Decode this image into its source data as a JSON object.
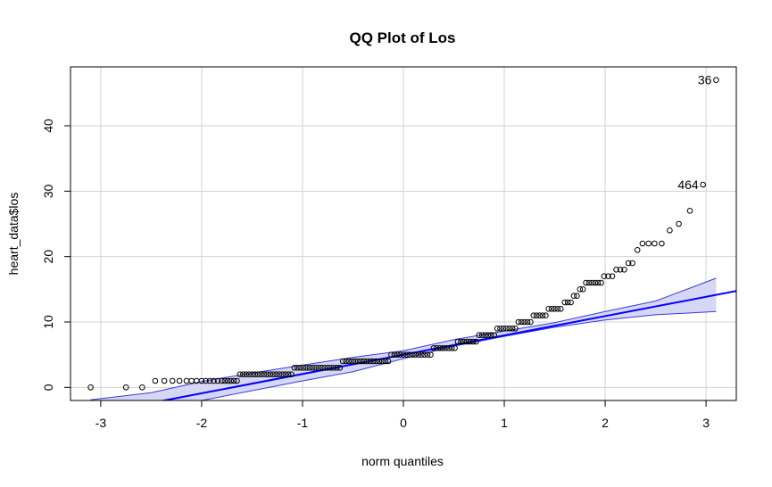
{
  "chart_data": {
    "type": "scatter",
    "title": "QQ Plot of Los",
    "xlabel": "norm quantiles",
    "ylabel": "heart_data$los",
    "xlim": [
      -3.3,
      3.3
    ],
    "ylim": [
      -2,
      49
    ],
    "x_ticks": [
      -3,
      -2,
      -1,
      0,
      1,
      2,
      3
    ],
    "y_ticks": [
      0,
      10,
      20,
      30,
      40
    ],
    "grid": true,
    "colors": {
      "points": "#000000",
      "reference_line": "#0000ff",
      "band_fill": "#d6d6f5",
      "band_edge": "#3b3bd6",
      "grid": "#d3d3d3"
    },
    "reference_line": {
      "intercept": 5.0,
      "slope": 2.95
    },
    "confidence_band": {
      "x": [
        -3.1,
        -2.5,
        -2.0,
        -1.5,
        -1.0,
        -0.5,
        0.0,
        0.5,
        1.0,
        1.5,
        2.0,
        2.5,
        3.1
      ],
      "lower": [
        -3.6,
        -3.3,
        -2.0,
        -0.5,
        1.0,
        2.4,
        4.4,
        6.3,
        7.8,
        9.2,
        10.3,
        11.1,
        11.6
      ],
      "upper": [
        -1.9,
        -0.8,
        0.9,
        2.2,
        3.4,
        4.6,
        5.6,
        7.3,
        8.6,
        9.9,
        11.6,
        13.2,
        16.7
      ]
    },
    "points": [
      [
        -3.1,
        0
      ],
      [
        -2.75,
        0
      ],
      [
        -2.59,
        0
      ],
      [
        -2.46,
        1
      ],
      [
        -2.37,
        1
      ],
      [
        -2.29,
        1
      ],
      [
        -2.22,
        1
      ],
      [
        -2.15,
        1
      ],
      [
        -2.1,
        1
      ],
      [
        -2.05,
        1
      ],
      [
        -2.0,
        1
      ],
      [
        -1.96,
        1
      ],
      [
        -1.92,
        1
      ],
      [
        -1.88,
        1
      ],
      [
        -1.84,
        1
      ],
      [
        -1.8,
        1
      ],
      [
        -1.77,
        1
      ],
      [
        -1.74,
        1
      ],
      [
        -1.71,
        1
      ],
      [
        -1.68,
        1
      ],
      [
        -1.65,
        1
      ],
      [
        -1.62,
        2
      ],
      [
        -1.59,
        2
      ],
      [
        -1.56,
        2
      ],
      [
        -1.53,
        2
      ],
      [
        -1.5,
        2
      ],
      [
        -1.47,
        2
      ],
      [
        -1.44,
        2
      ],
      [
        -1.41,
        2
      ],
      [
        -1.38,
        2
      ],
      [
        -1.35,
        2
      ],
      [
        -1.32,
        2
      ],
      [
        -1.29,
        2
      ],
      [
        -1.26,
        2
      ],
      [
        -1.23,
        2
      ],
      [
        -1.2,
        2
      ],
      [
        -1.17,
        2
      ],
      [
        -1.14,
        2
      ],
      [
        -1.11,
        2
      ],
      [
        -1.08,
        3
      ],
      [
        -1.05,
        3
      ],
      [
        -1.02,
        3
      ],
      [
        -0.99,
        3
      ],
      [
        -0.96,
        3
      ],
      [
        -0.93,
        3
      ],
      [
        -0.9,
        3
      ],
      [
        -0.87,
        3
      ],
      [
        -0.84,
        3
      ],
      [
        -0.81,
        3
      ],
      [
        -0.78,
        3
      ],
      [
        -0.75,
        3
      ],
      [
        -0.72,
        3
      ],
      [
        -0.69,
        3
      ],
      [
        -0.66,
        3
      ],
      [
        -0.63,
        3
      ],
      [
        -0.6,
        4
      ],
      [
        -0.57,
        4
      ],
      [
        -0.54,
        4
      ],
      [
        -0.51,
        4
      ],
      [
        -0.48,
        4
      ],
      [
        -0.45,
        4
      ],
      [
        -0.42,
        4
      ],
      [
        -0.39,
        4
      ],
      [
        -0.36,
        4
      ],
      [
        -0.33,
        4
      ],
      [
        -0.3,
        4
      ],
      [
        -0.27,
        4
      ],
      [
        -0.24,
        4
      ],
      [
        -0.21,
        4
      ],
      [
        -0.18,
        4
      ],
      [
        -0.15,
        4
      ],
      [
        -0.12,
        5
      ],
      [
        -0.09,
        5
      ],
      [
        -0.06,
        5
      ],
      [
        -0.03,
        5
      ],
      [
        0.0,
        5
      ],
      [
        0.03,
        5
      ],
      [
        0.06,
        5
      ],
      [
        0.09,
        5
      ],
      [
        0.12,
        5
      ],
      [
        0.15,
        5
      ],
      [
        0.18,
        5
      ],
      [
        0.21,
        5
      ],
      [
        0.24,
        5
      ],
      [
        0.27,
        5
      ],
      [
        0.3,
        6
      ],
      [
        0.33,
        6
      ],
      [
        0.36,
        6
      ],
      [
        0.39,
        6
      ],
      [
        0.42,
        6
      ],
      [
        0.45,
        6
      ],
      [
        0.48,
        6
      ],
      [
        0.51,
        6
      ],
      [
        0.54,
        7
      ],
      [
        0.57,
        7
      ],
      [
        0.6,
        7
      ],
      [
        0.63,
        7
      ],
      [
        0.66,
        7
      ],
      [
        0.69,
        7
      ],
      [
        0.72,
        7
      ],
      [
        0.75,
        8
      ],
      [
        0.78,
        8
      ],
      [
        0.81,
        8
      ],
      [
        0.84,
        8
      ],
      [
        0.87,
        8
      ],
      [
        0.9,
        8
      ],
      [
        0.93,
        9
      ],
      [
        0.96,
        9
      ],
      [
        0.99,
        9
      ],
      [
        1.02,
        9
      ],
      [
        1.05,
        9
      ],
      [
        1.08,
        9
      ],
      [
        1.11,
        9
      ],
      [
        1.14,
        10
      ],
      [
        1.17,
        10
      ],
      [
        1.2,
        10
      ],
      [
        1.23,
        10
      ],
      [
        1.26,
        10
      ],
      [
        1.29,
        11
      ],
      [
        1.32,
        11
      ],
      [
        1.35,
        11
      ],
      [
        1.38,
        11
      ],
      [
        1.41,
        11
      ],
      [
        1.44,
        12
      ],
      [
        1.47,
        12
      ],
      [
        1.5,
        12
      ],
      [
        1.53,
        12
      ],
      [
        1.56,
        12
      ],
      [
        1.6,
        13
      ],
      [
        1.63,
        13
      ],
      [
        1.66,
        13
      ],
      [
        1.69,
        14
      ],
      [
        1.72,
        14
      ],
      [
        1.75,
        15
      ],
      [
        1.78,
        15
      ],
      [
        1.81,
        16
      ],
      [
        1.84,
        16
      ],
      [
        1.87,
        16
      ],
      [
        1.9,
        16
      ],
      [
        1.93,
        16
      ],
      [
        1.96,
        16
      ],
      [
        1.99,
        17
      ],
      [
        2.03,
        17
      ],
      [
        2.07,
        17
      ],
      [
        2.11,
        18
      ],
      [
        2.15,
        18
      ],
      [
        2.19,
        18
      ],
      [
        2.23,
        19
      ],
      [
        2.27,
        19
      ],
      [
        2.32,
        21
      ],
      [
        2.37,
        22
      ],
      [
        2.43,
        22
      ],
      [
        2.49,
        22
      ],
      [
        2.56,
        22
      ],
      [
        2.64,
        24
      ],
      [
        2.73,
        25
      ],
      [
        2.84,
        27
      ],
      [
        2.97,
        31
      ],
      [
        3.1,
        47
      ]
    ],
    "labels": [
      {
        "text": "36",
        "x": 3.1,
        "y": 47
      },
      {
        "text": "464",
        "x": 2.97,
        "y": 31
      }
    ]
  }
}
